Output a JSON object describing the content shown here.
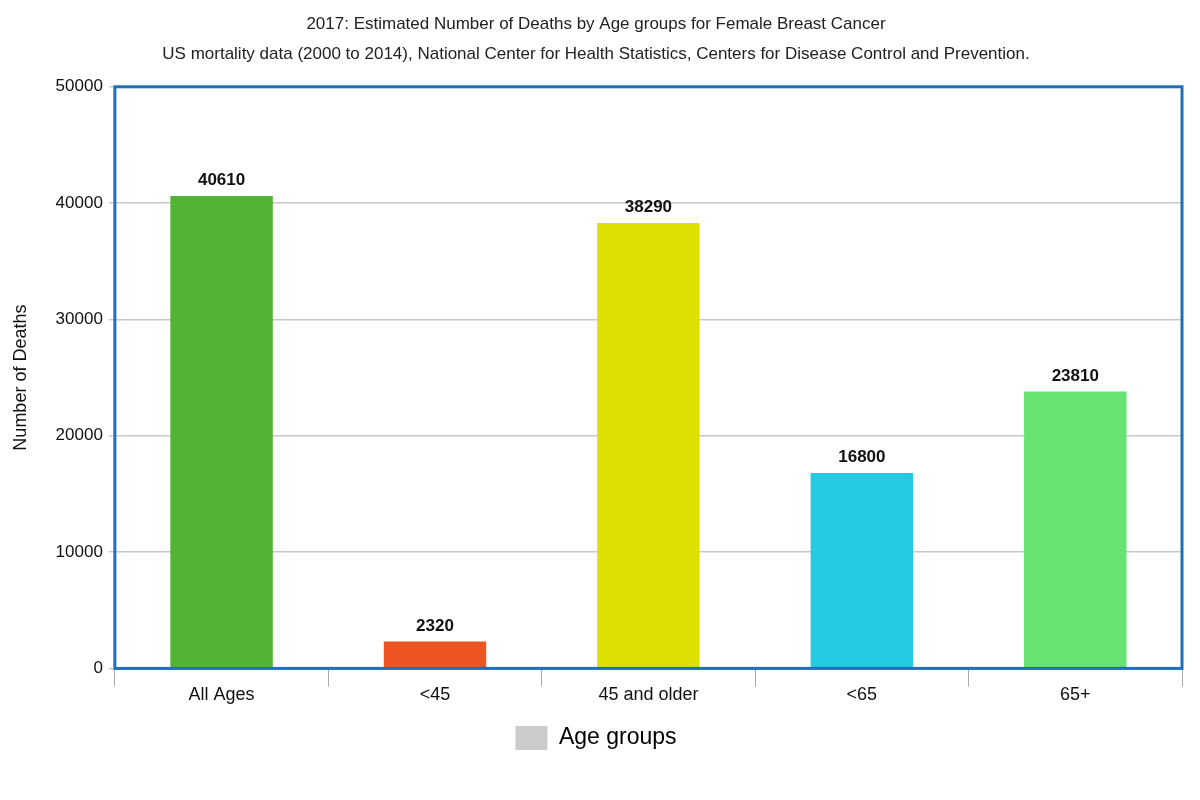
{
  "chart_data": {
    "type": "bar",
    "title": "2017: Estimated Number of Deaths by Age groups for Female Breast Cancer",
    "subtitle": "US mortality data (2000 to 2014), National Center for Health Statistics, Centers for Disease Control and Prevention.",
    "y_label": "Number of Deaths",
    "categories": [
      "All Ages",
      "<45",
      "45 and older",
      "<65",
      "65+"
    ],
    "series": [
      {
        "name": "Age groups",
        "color": "#cccccc",
        "colors": [
          "#52b335",
          "#ee5522",
          "#dde000",
          "#26c9e2",
          "#66e370"
        ],
        "values": [
          40610,
          2320,
          38290,
          16800,
          23810
        ]
      }
    ],
    "ylim": [
      0,
      50000
    ],
    "yticks": [
      0,
      10000,
      20000,
      30000,
      40000,
      50000
    ],
    "grid": true,
    "legend": "bottom",
    "data_labels": true
  }
}
